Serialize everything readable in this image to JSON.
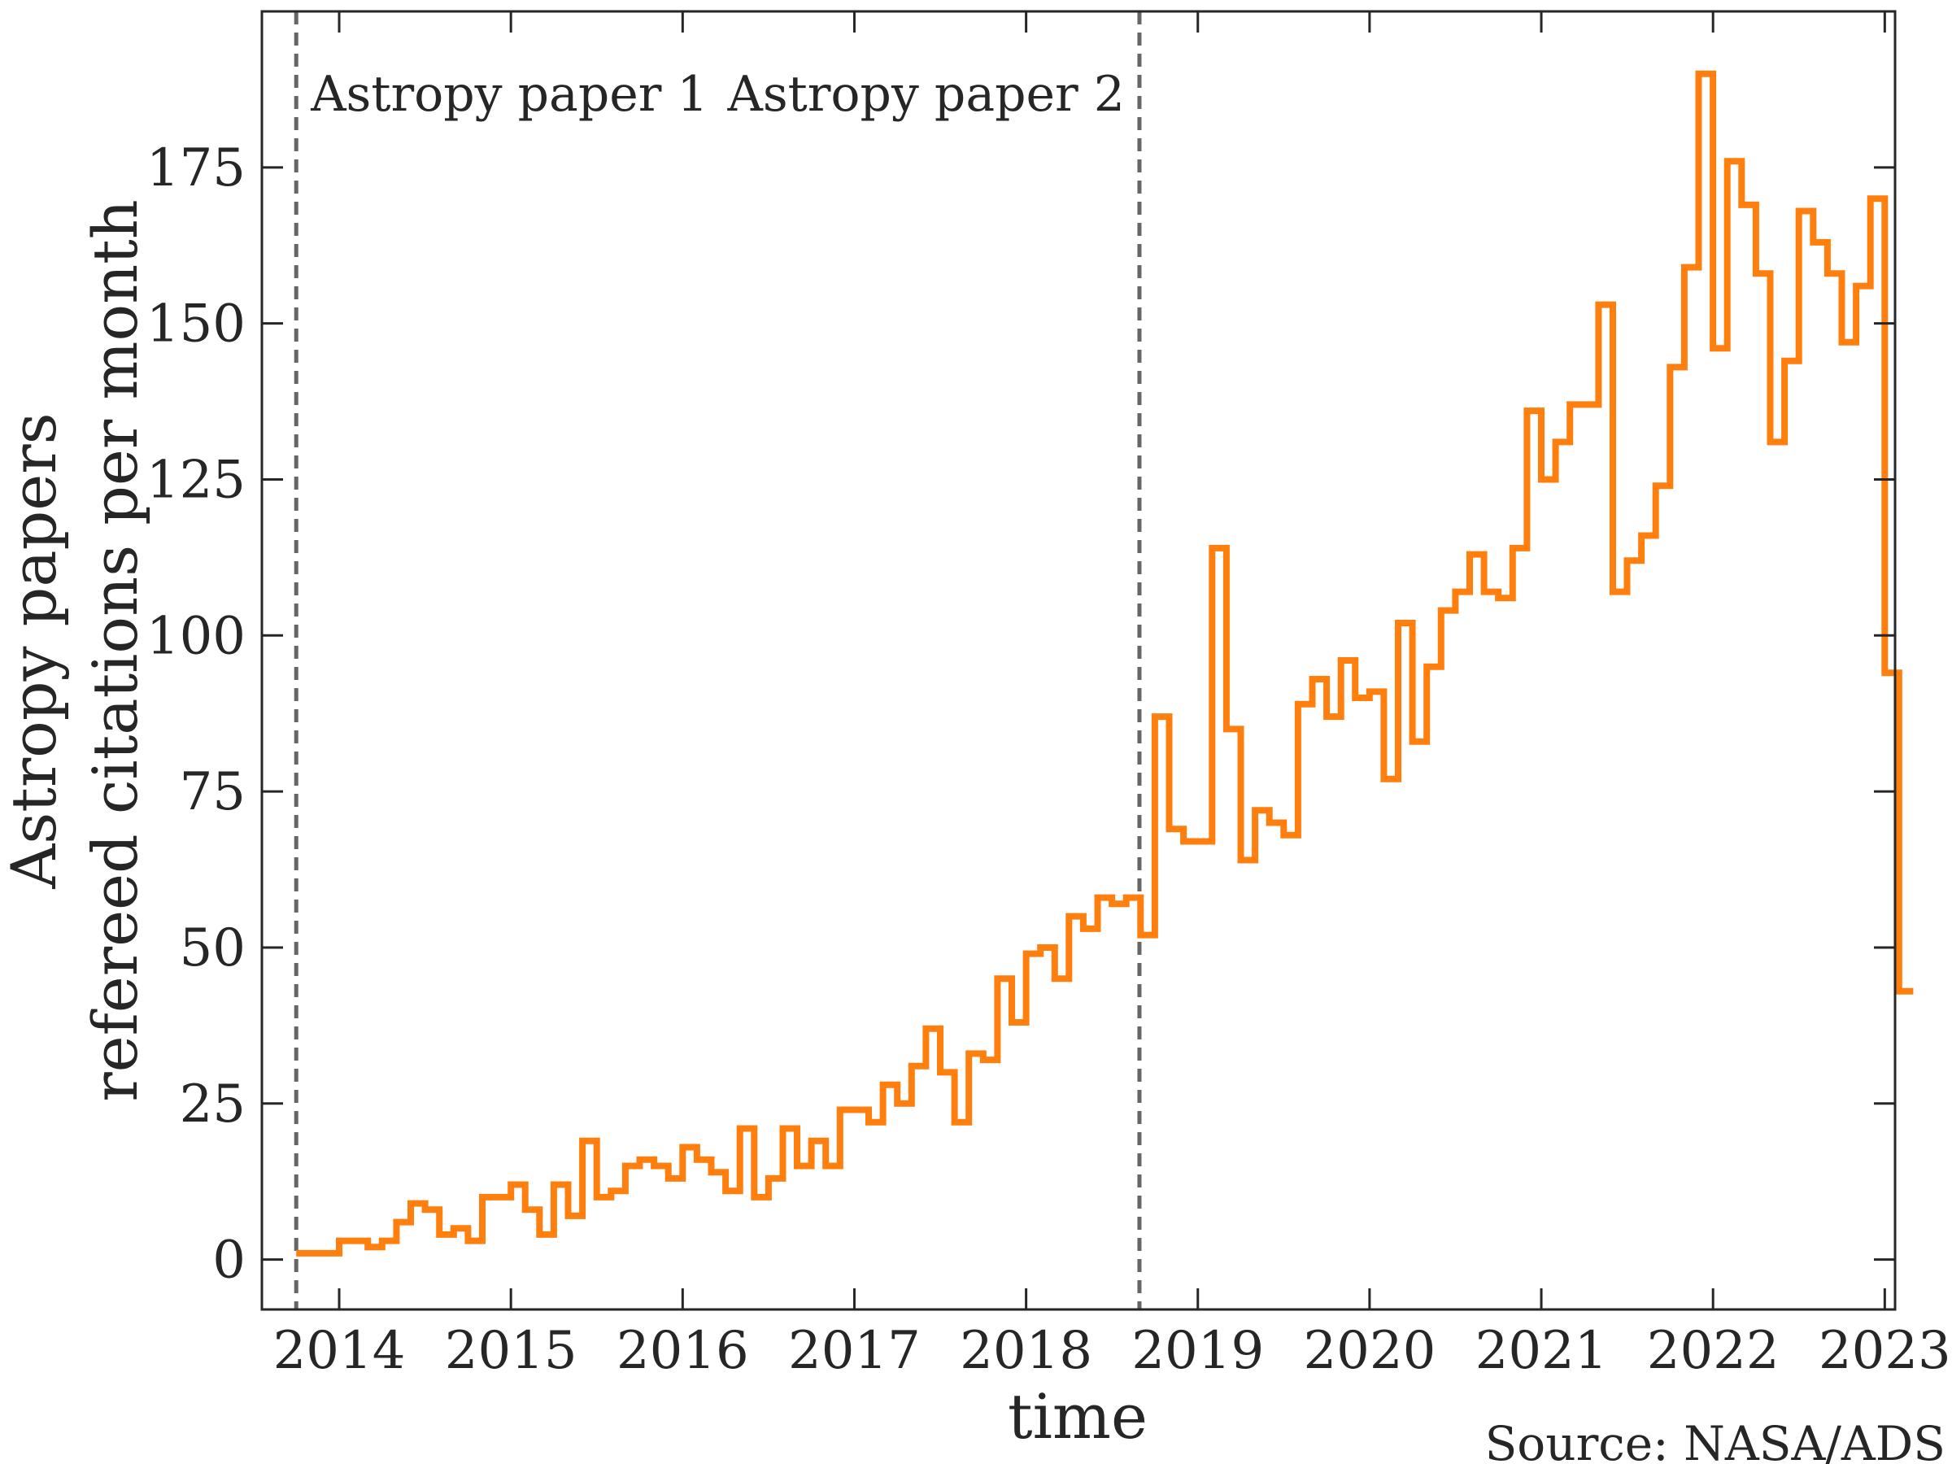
{
  "chart_data": {
    "type": "line",
    "step": true,
    "xlabel": "time",
    "ylabel": [
      "Astropy papers",
      "refereed citations per month"
    ],
    "source_note": "Source: NASA/ADS",
    "xlim": [
      2013.55,
      2023.06
    ],
    "ylim": [
      -8,
      200
    ],
    "xticks": [
      2014,
      2015,
      2016,
      2017,
      2018,
      2019,
      2020,
      2021,
      2022,
      2023
    ],
    "xtick_labels": [
      "2014",
      "2015",
      "2016",
      "2017",
      "2018",
      "2019",
      "2020",
      "2021",
      "2022",
      "2023"
    ],
    "yticks": [
      0,
      25,
      50,
      75,
      100,
      125,
      150,
      175
    ],
    "ytick_labels": [
      "0",
      "25",
      "50",
      "75",
      "100",
      "125",
      "150",
      "175"
    ],
    "grid": false,
    "line_color": "#ff7f0e",
    "vline_color": "#666666",
    "annotations": [
      {
        "x": 2013.75,
        "label": "Astropy paper 1"
      },
      {
        "x": 2018.66,
        "label": "Astropy paper 2"
      }
    ],
    "series": [
      {
        "start": 2013.75,
        "step_years": 0.08333,
        "values": [
          1,
          1,
          1,
          3,
          3,
          2,
          3,
          6,
          9,
          8,
          4,
          5,
          3,
          10,
          10,
          12,
          8,
          4,
          12,
          7,
          19,
          10,
          11,
          15,
          16,
          15,
          13,
          18,
          16,
          14,
          11,
          21,
          10,
          13,
          21,
          15,
          19,
          15,
          24,
          24,
          22,
          28,
          25,
          31,
          37,
          30,
          22,
          33,
          32,
          45,
          38,
          49,
          50,
          45,
          55,
          53,
          58,
          57,
          58,
          52,
          87,
          69,
          67,
          67,
          114,
          85,
          64,
          72,
          70,
          68,
          89,
          93,
          87,
          96,
          90,
          91,
          77,
          102,
          83,
          95,
          104,
          107,
          113,
          107,
          106,
          114,
          136,
          125,
          131,
          137,
          137,
          153,
          107,
          112,
          116,
          124,
          143,
          159,
          190,
          146,
          176,
          169,
          158,
          131,
          144,
          168,
          163,
          158,
          147,
          156,
          170,
          94,
          43
        ]
      }
    ]
  }
}
